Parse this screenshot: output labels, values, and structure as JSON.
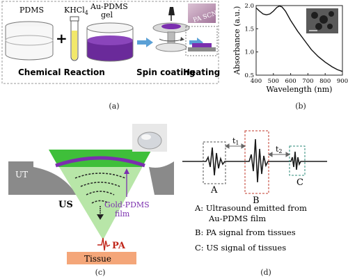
{
  "panel_a": {
    "labels": {
      "pdms": "PDMS",
      "plus": "+",
      "khcl4": "KHCl",
      "khcl4_sub": "4",
      "gel_line1": "Au-PDMS",
      "gel_line2": "gel",
      "pa_scn": "PA SCN",
      "chemical_reaction": "Chemical Reaction",
      "spin_coating": "Spin coating",
      "heating": "Heating"
    },
    "colors": {
      "gel": "#6a2a9a",
      "arrow": "#5aa0d6",
      "tube_liquid": "#f2e86a"
    }
  },
  "panel_b": {
    "chart_data": {
      "type": "line",
      "xlabel": "Wavelength (nm)",
      "ylabel": "Absorbance (a.u.)",
      "xlim": [
        400,
        900
      ],
      "ylim": [
        0.5,
        2.0
      ],
      "x_ticks": [
        400,
        500,
        600,
        700,
        800,
        900
      ],
      "y_ticks": [
        0.5,
        1.0,
        1.5,
        2.0
      ],
      "x_tick_labels": [
        "400",
        "500",
        "600",
        "700",
        "800",
        "900"
      ],
      "y_tick_labels": [
        "0.5",
        "1.0",
        "1.5",
        "2.0"
      ],
      "series": [
        {
          "x": [
            400,
            420,
            440,
            460,
            480,
            500,
            520,
            535,
            550,
            570,
            600,
            640,
            680,
            720,
            760,
            800,
            840,
            870,
            900
          ],
          "values": [
            1.95,
            1.88,
            1.82,
            1.8,
            1.82,
            1.88,
            1.96,
            1.99,
            1.97,
            1.88,
            1.68,
            1.45,
            1.25,
            1.05,
            0.9,
            0.78,
            0.68,
            0.62,
            0.58
          ]
        }
      ]
    }
  },
  "panel_c": {
    "labels": {
      "ut": "UT",
      "us": "US",
      "gold_pdms_line1": "Gold-PDMS",
      "gold_pdms_line2": "film",
      "pa": "PA",
      "tissue": "Tissue"
    },
    "colors": {
      "cone": "#b8e6a8",
      "cone_top": "#3fbf3a",
      "film": "#7b2fae",
      "tissue": "#f4a679",
      "ut": "#8a8a8a",
      "pa": "#c0261a"
    }
  },
  "panel_d": {
    "marks": {
      "a": "A",
      "b": "B",
      "c": "C",
      "t1": "t",
      "t1_sub": "1",
      "t2": "t",
      "t2_sub": "2"
    },
    "legend": {
      "a_line1": "A: Ultrasound emitted from",
      "a_line2": "Au-PDMS film",
      "b": "B: PA signal from tissues",
      "c": "C: US signal of tissues"
    },
    "colors": {
      "box_a": "#555555",
      "box_b": "#c0392b",
      "box_c": "#2e8b7a"
    }
  },
  "captions": {
    "a": "(a)",
    "b": "(b)",
    "c": "(c)",
    "d": "(d)"
  }
}
